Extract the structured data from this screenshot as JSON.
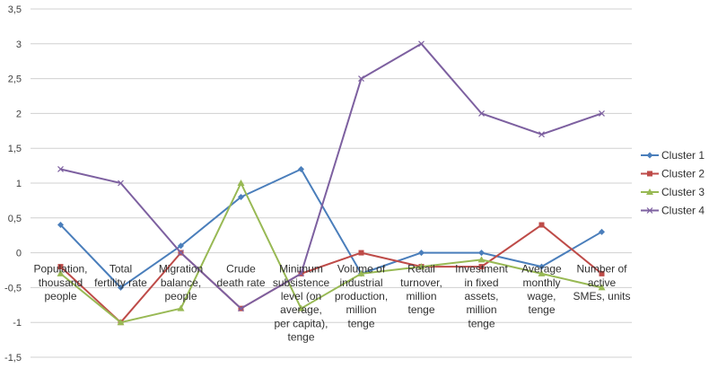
{
  "chart_data": {
    "type": "line",
    "title": "",
    "xlabel": "",
    "ylabel": "",
    "ylim": [
      -1.5,
      3.5
    ],
    "ytick_step": 0.5,
    "grid": "horizontal",
    "legend_position": "right",
    "yticks": [
      "3,5",
      "3",
      "2,5",
      "2",
      "1,5",
      "1",
      "0,5",
      "0",
      "-0,5",
      "-1",
      "-1,5"
    ],
    "categories": [
      [
        "Population,",
        "thousand",
        "people"
      ],
      [
        "Total",
        "fertility rate"
      ],
      [
        "Migration",
        "balance,",
        "people"
      ],
      [
        "Crude",
        "death rate"
      ],
      [
        "Minimum",
        "subsistence",
        "level (on",
        "average,",
        "per capita),",
        "tenge"
      ],
      [
        "Volume of",
        "industrial",
        "production,",
        "million",
        "tenge"
      ],
      [
        "Retail",
        "turnover,",
        "million",
        "tenge"
      ],
      [
        "Investment",
        "in fixed",
        "assets,",
        "million",
        "tenge"
      ],
      [
        "Average",
        "monthly",
        "wage,",
        "tenge"
      ],
      [
        "Number of",
        "active",
        "SMEs, units"
      ]
    ],
    "series": [
      {
        "name": "Cluster 1",
        "color": "#4a7ebb",
        "marker": "diamond",
        "values": [
          0.4,
          -0.5,
          0.1,
          0.8,
          1.2,
          -0.3,
          0.0,
          0.0,
          -0.2,
          0.3
        ]
      },
      {
        "name": "Cluster 2",
        "color": "#be4b48",
        "marker": "square",
        "values": [
          -0.2,
          -1.0,
          0.0,
          -0.8,
          -0.3,
          0.0,
          -0.2,
          -0.2,
          0.4,
          -0.3
        ]
      },
      {
        "name": "Cluster 3",
        "color": "#98b954",
        "marker": "triangle",
        "values": [
          -0.3,
          -1.0,
          -0.8,
          1.0,
          -0.8,
          -0.3,
          -0.2,
          -0.1,
          -0.3,
          -0.5
        ]
      },
      {
        "name": "Cluster 4",
        "color": "#7d60a0",
        "marker": "x",
        "values": [
          1.2,
          1.0,
          0.0,
          -0.8,
          -0.3,
          2.5,
          3.0,
          2.0,
          1.7,
          2.0
        ]
      }
    ]
  }
}
